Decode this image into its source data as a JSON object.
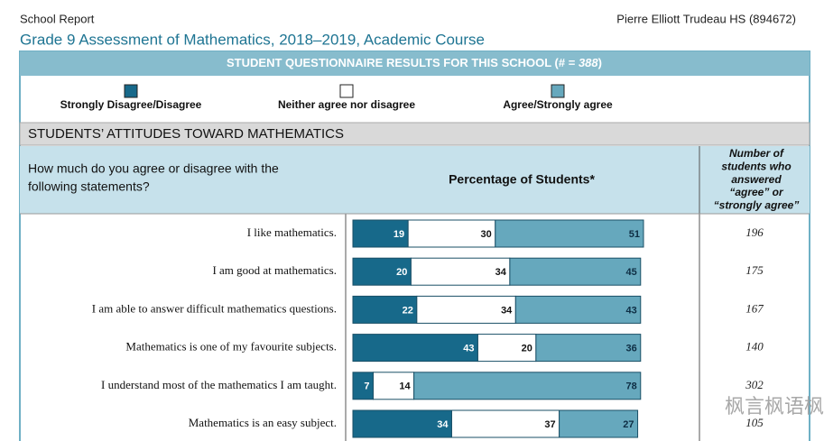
{
  "report": {
    "left": "School Report",
    "right": "Pierre Elliott Trudeau HS (894672)"
  },
  "title": "Grade 9 Assessment of Mathematics, 2018–2019, Academic Course",
  "banner": {
    "text": "STUDENT QUESTIONNAIRE RESULTS FOR THIS SCHOOL (# = ",
    "count": 388,
    "close": ")"
  },
  "section": "STUDENTS’ ATTITUDES TOWARD MATHEMATICS",
  "columns": {
    "question": [
      "How much do you agree or disagree with the",
      "following statements?"
    ],
    "percentage": "Percentage of Students*",
    "answered": [
      "Number of",
      "students who",
      "answered",
      "“agree” or",
      "“strongly agree”"
    ]
  },
  "chart_data": {
    "type": "bar",
    "stacked": true,
    "orientation": "horizontal",
    "xlim": [
      0,
      100
    ],
    "categories": [
      "I like mathematics.",
      "I am good at mathematics.",
      "I am able to answer difficult mathematics questions.",
      "Mathematics is one of my favourite subjects.",
      "I understand most of the mathematics I am taught.",
      "Mathematics is an easy subject."
    ],
    "series": [
      {
        "name": "Strongly Disagree/Disagree",
        "color": "#17698a",
        "label_color": "#ffffff",
        "values": [
          19,
          20,
          22,
          43,
          7,
          34
        ]
      },
      {
        "name": "Neither agree nor disagree",
        "color": "#ffffff",
        "label_color": "#111111",
        "values": [
          30,
          34,
          34,
          20,
          14,
          37
        ]
      },
      {
        "name": "Agree/Strongly agree",
        "color": "#66a8bd",
        "label_color": "#0e2e44",
        "values": [
          51,
          45,
          43,
          36,
          78,
          27
        ]
      }
    ]
  },
  "answered": [
    196,
    175,
    167,
    140,
    302,
    105
  ],
  "watermark": "枫言枫语枫"
}
